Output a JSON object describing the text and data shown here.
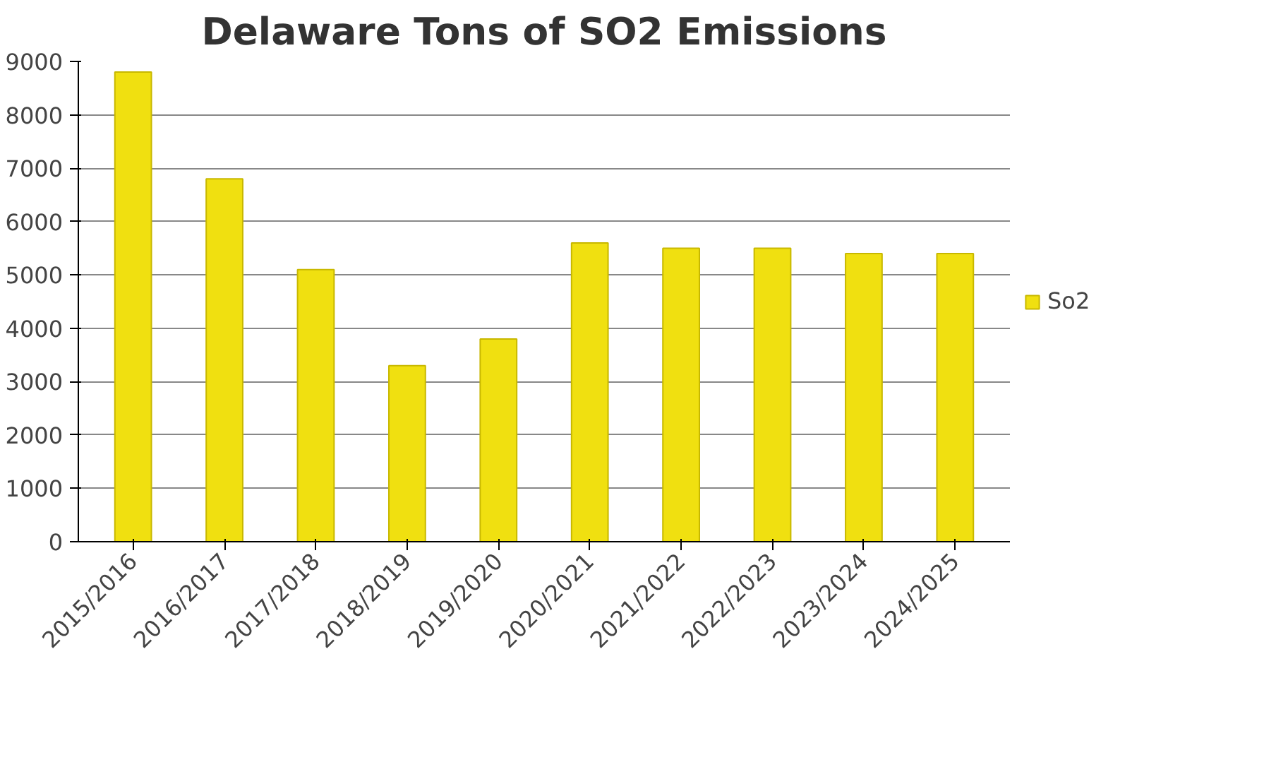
{
  "chart_data": {
    "type": "bar",
    "title": "Delaware Tons of SO2 Emissions",
    "categories": [
      "2015/2016",
      "2016/2017",
      "2017/2018",
      "2018/2019",
      "2019/2020",
      "2020/2021",
      "2021/2022",
      "2022/2023",
      "2023/2024",
      "2024/2025"
    ],
    "series": [
      {
        "name": "So2",
        "color": "#f0e010",
        "values": [
          8800,
          6800,
          5100,
          3300,
          3800,
          5600,
          5500,
          5500,
          5400,
          5400
        ]
      }
    ],
    "ylim": [
      0,
      9000
    ],
    "yticks": [
      0,
      1000,
      2000,
      3000,
      4000,
      5000,
      6000,
      7000,
      8000,
      9000
    ],
    "grid": "y",
    "legend": "right"
  }
}
